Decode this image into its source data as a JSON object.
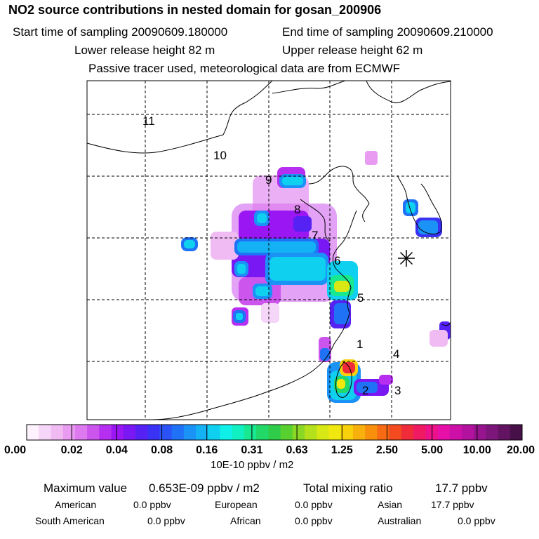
{
  "header": {
    "title": "NO2 source contributions in nested domain for gosan_200906",
    "start_label": "Start time of sampling 20090609.180000",
    "end_label": "End time of sampling 20090609.210000",
    "lower_label": "Lower release height   82 m",
    "upper_label": "Upper release height   62 m",
    "note": "Passive tracer used, meteorological data are from ECMWF"
  },
  "chart_data": {
    "type": "heatmap",
    "title": "NO2 source contributions in nested domain for gosan_200906",
    "units": "10E-10 ppbv / m2",
    "colorbar_ticks": [
      "0.00",
      "0.02",
      "0.04",
      "0.08",
      "0.16",
      "0.31",
      "0.63",
      "1.25",
      "2.50",
      "5.00",
      "10.00",
      "20.00"
    ],
    "colorbar_colors": [
      "#fdf2fd",
      "#f6d6f8",
      "#f0bbf3",
      "#e89bf0",
      "#dd7aef",
      "#cc55ee",
      "#b62ff0",
      "#9a16f2",
      "#7a18f3",
      "#5622f4",
      "#3a32f5",
      "#2a52f6",
      "#1f72f6",
      "#1a92f6",
      "#14b2f5",
      "#10d0f0",
      "#0ef0e8",
      "#10f0c0",
      "#18e890",
      "#22d868",
      "#2ecc48",
      "#58d030",
      "#8ad824",
      "#b4e01c",
      "#d8e814",
      "#f0e80e",
      "#f8d00c",
      "#f8b00c",
      "#f8900e",
      "#f86a14",
      "#f44a20",
      "#f02c3a",
      "#f01a62",
      "#ee128a",
      "#e610a8",
      "#cc10a8",
      "#b2129e",
      "#98148e",
      "#7c167a",
      "#621462",
      "#481048"
    ],
    "region_labels": [
      "11",
      "10",
      "9",
      "8",
      "7",
      "6",
      "5",
      "1",
      "4",
      "2",
      "3"
    ],
    "receptor_marker": "asterisk",
    "maximum_value": "0.653E-09 ppbv / m2",
    "total_mixing_ratio": "17.7 ppbv",
    "source_regions": [
      {
        "name": "American",
        "value": "0.0 ppbv"
      },
      {
        "name": "European",
        "value": "0.0 ppbv"
      },
      {
        "name": "Asian",
        "value": "17.7 ppbv"
      },
      {
        "name": "South American",
        "value": "0.0 ppbv"
      },
      {
        "name": "African",
        "value": "0.0 ppbv"
      },
      {
        "name": "Australian",
        "value": "0.0 ppbv"
      }
    ]
  },
  "footer": {
    "max_label": "Maximum value",
    "max_value": "0.653E-09 ppbv / m2",
    "total_label": "Total mixing ratio",
    "total_value": "17.7 ppbv"
  }
}
